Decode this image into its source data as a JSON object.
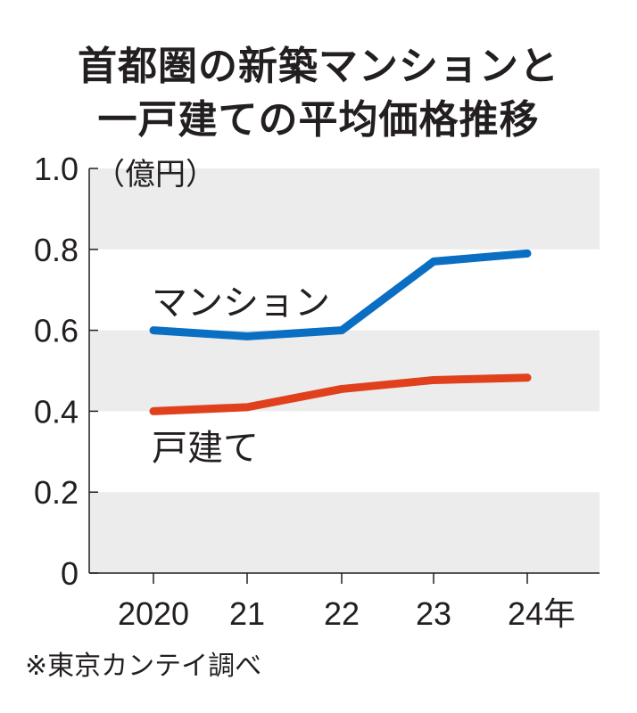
{
  "chart_data": {
    "type": "line",
    "title": [
      "首都圏の新築マンションと",
      "一戸建ての平均価格推移"
    ],
    "unit_label": "（億円）",
    "categories": [
      "2020",
      "21",
      "22",
      "23",
      "24年"
    ],
    "ylim": [
      0,
      1.0
    ],
    "yticks": [
      0,
      0.2,
      0.4,
      0.6,
      0.8,
      1.0
    ],
    "ytick_labels": [
      "0",
      "0.2",
      "0.4",
      "0.6",
      "0.8",
      "1.0"
    ],
    "series": [
      {
        "name": "マンション",
        "color": "#0a6fc2",
        "values": [
          0.6,
          0.585,
          0.6,
          0.77,
          0.79
        ]
      },
      {
        "name": "戸建て",
        "color": "#e0401c",
        "values": [
          0.4,
          0.41,
          0.455,
          0.477,
          0.483
        ]
      }
    ],
    "band_color": "#ececec",
    "source": "※東京カンテイ調べ"
  }
}
